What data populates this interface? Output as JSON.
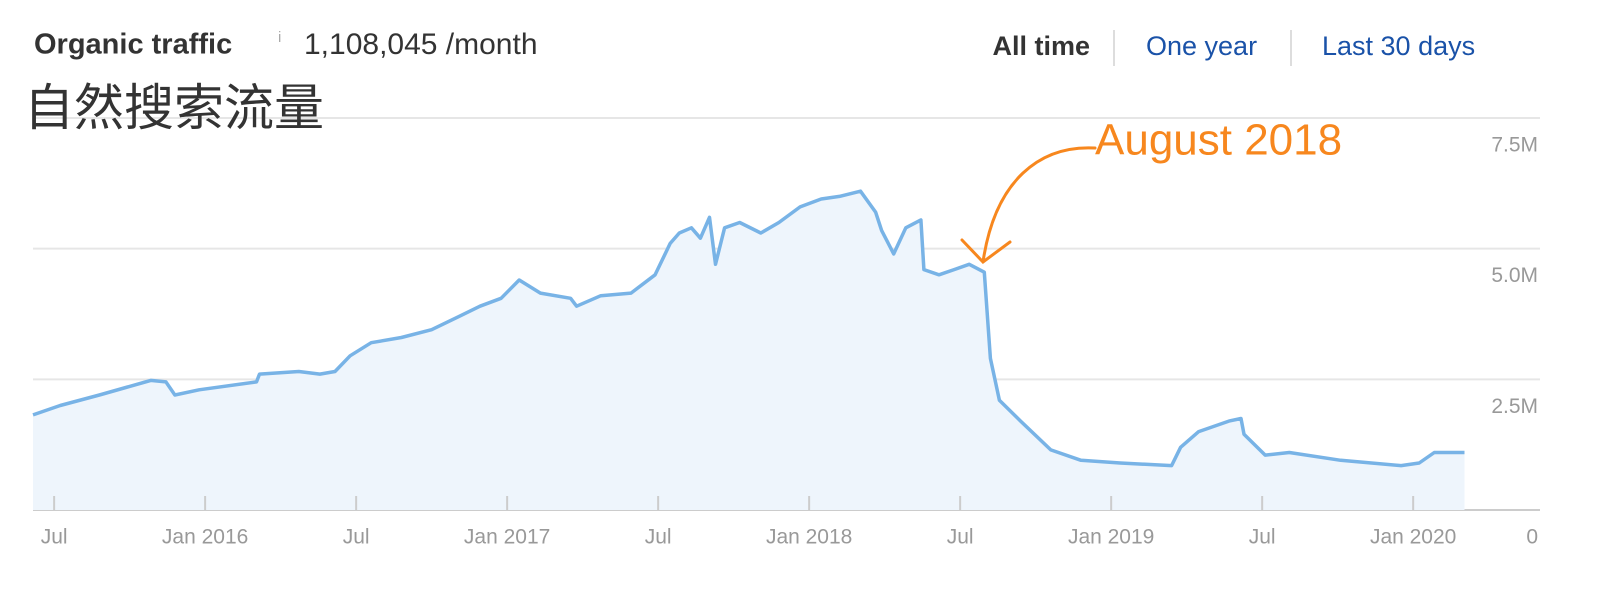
{
  "header": {
    "title": "Organic traffic",
    "info": "i",
    "value": "1,108,045 /month",
    "tabs": [
      "All time",
      "One year",
      "Last 30 days"
    ]
  },
  "overlay_label": "自然搜索流量",
  "chart_data": {
    "type": "line",
    "x": [
      2015.43,
      2015.52,
      2015.65,
      2015.82,
      2015.87,
      2015.9,
      2015.98,
      2016.17,
      2016.18,
      2016.31,
      2016.38,
      2016.43,
      2016.48,
      2016.55,
      2016.65,
      2016.75,
      2016.84,
      2016.91,
      2016.98,
      2017.04,
      2017.11,
      2017.21,
      2017.23,
      2017.31,
      2017.41,
      2017.49,
      2017.54,
      2017.57,
      2017.61,
      2017.64,
      2017.67,
      2017.69,
      2017.72,
      2017.77,
      2017.84,
      2017.9,
      2017.97,
      2018.04,
      2018.1,
      2018.17,
      2018.22,
      2018.24,
      2018.28,
      2018.32,
      2018.37,
      2018.38,
      2018.43,
      2018.48,
      2018.53,
      2018.58,
      2018.6,
      2018.63,
      2018.7,
      2018.8,
      2018.9,
      2019.03,
      2019.2,
      2019.23,
      2019.29,
      2019.39,
      2019.43,
      2019.44,
      2019.51,
      2019.59,
      2019.76,
      2019.96,
      2020.02,
      2020.07,
      2020.17
    ],
    "values": [
      1820000,
      2000000,
      2200000,
      2480000,
      2450000,
      2200000,
      2300000,
      2450000,
      2600000,
      2650000,
      2600000,
      2650000,
      2950000,
      3200000,
      3300000,
      3450000,
      3700000,
      3900000,
      4050000,
      4400000,
      4150000,
      4050000,
      3900000,
      4100000,
      4150000,
      4500000,
      5100000,
      5300000,
      5400000,
      5200000,
      5600000,
      4700000,
      5400000,
      5500000,
      5300000,
      5500000,
      5800000,
      5950000,
      6000000,
      6100000,
      5700000,
      5350000,
      4900000,
      5400000,
      5550000,
      4600000,
      4500000,
      4600000,
      4700000,
      4550000,
      2900000,
      2100000,
      1700000,
      1150000,
      950000,
      900000,
      850000,
      1200000,
      1500000,
      1700000,
      1750000,
      1450000,
      1050000,
      1100000,
      950000,
      850000,
      900000,
      1100000,
      1100000
    ],
    "color": "#78b3e6",
    "fill_color": "#eef5fc",
    "annotation": "August 2018",
    "annotation_color": "#f7871e",
    "xlim": [
      2015.43,
      2020.42
    ],
    "xticks": [
      {
        "value": 2015.5,
        "label": "Jul"
      },
      {
        "value": 2016,
        "label": "Jan 2016"
      },
      {
        "value": 2016.5,
        "label": "Jul"
      },
      {
        "value": 2017,
        "label": "Jan 2017"
      },
      {
        "value": 2017.5,
        "label": "Jul"
      },
      {
        "value": 2018,
        "label": "Jan 2018"
      },
      {
        "value": 2018.5,
        "label": "Jul"
      },
      {
        "value": 2019,
        "label": "Jan 2019"
      },
      {
        "value": 2019.5,
        "label": "Jul"
      },
      {
        "value": 2020,
        "label": "Jan 2020"
      }
    ],
    "ylim": [
      0,
      7500000
    ],
    "yticks": [
      0,
      {
        "value": 2500000,
        "label": "2.5M"
      },
      {
        "value": 5000000,
        "label": "5.0M"
      },
      {
        "value": 7500000,
        "label": "7.5M"
      }
    ],
    "grid": true
  }
}
